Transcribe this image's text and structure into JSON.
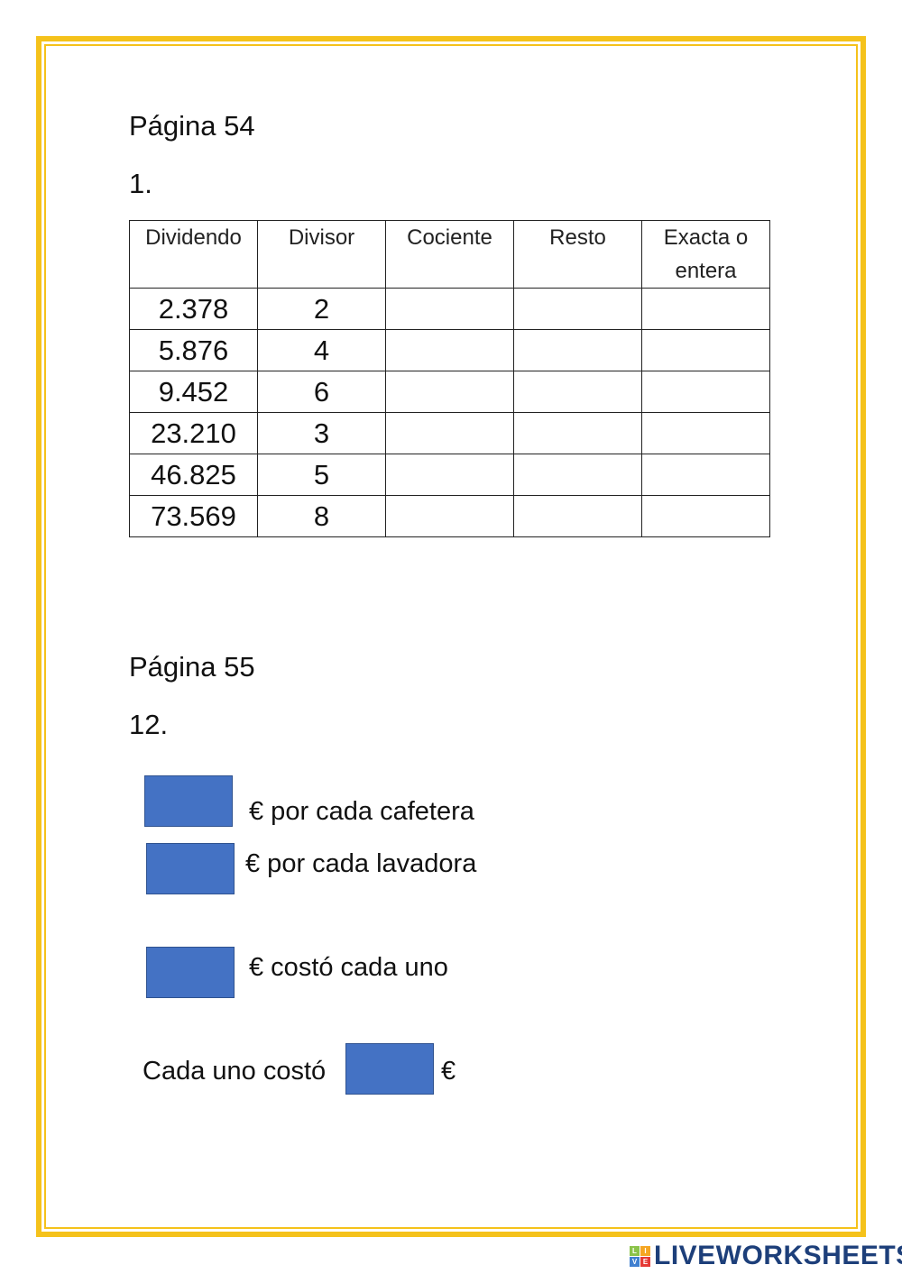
{
  "section1": {
    "heading": "Página 54",
    "exercise": "1."
  },
  "table": {
    "headers": [
      "Dividendo",
      "Divisor",
      "Cociente",
      "Resto",
      "Exacta o entera"
    ],
    "rows": [
      [
        "2.378",
        "2",
        "",
        "",
        ""
      ],
      [
        "5.876",
        "4",
        "",
        "",
        ""
      ],
      [
        "9.452",
        "6",
        "",
        "",
        ""
      ],
      [
        "23.210",
        "3",
        "",
        "",
        ""
      ],
      [
        "46.825",
        "5",
        "",
        "",
        ""
      ],
      [
        "73.569",
        "8",
        "",
        "",
        ""
      ]
    ]
  },
  "section2": {
    "heading": "Página 55",
    "exercise": "12.",
    "answers": [
      {
        "label": "€ por cada cafetera"
      },
      {
        "label": "€ por cada lavadora"
      },
      {
        "label": "€ costó cada uno"
      }
    ],
    "final_prefix": "Cada uno costó",
    "final_suffix": "€"
  },
  "logo": {
    "text": "LIVEWORKSHEETS",
    "icon_letters": [
      "L",
      "I",
      "V",
      "E"
    ]
  },
  "colors": {
    "border": "#f5c21b",
    "answer_box": "#4472c4",
    "logo": "#1d3f7a"
  }
}
